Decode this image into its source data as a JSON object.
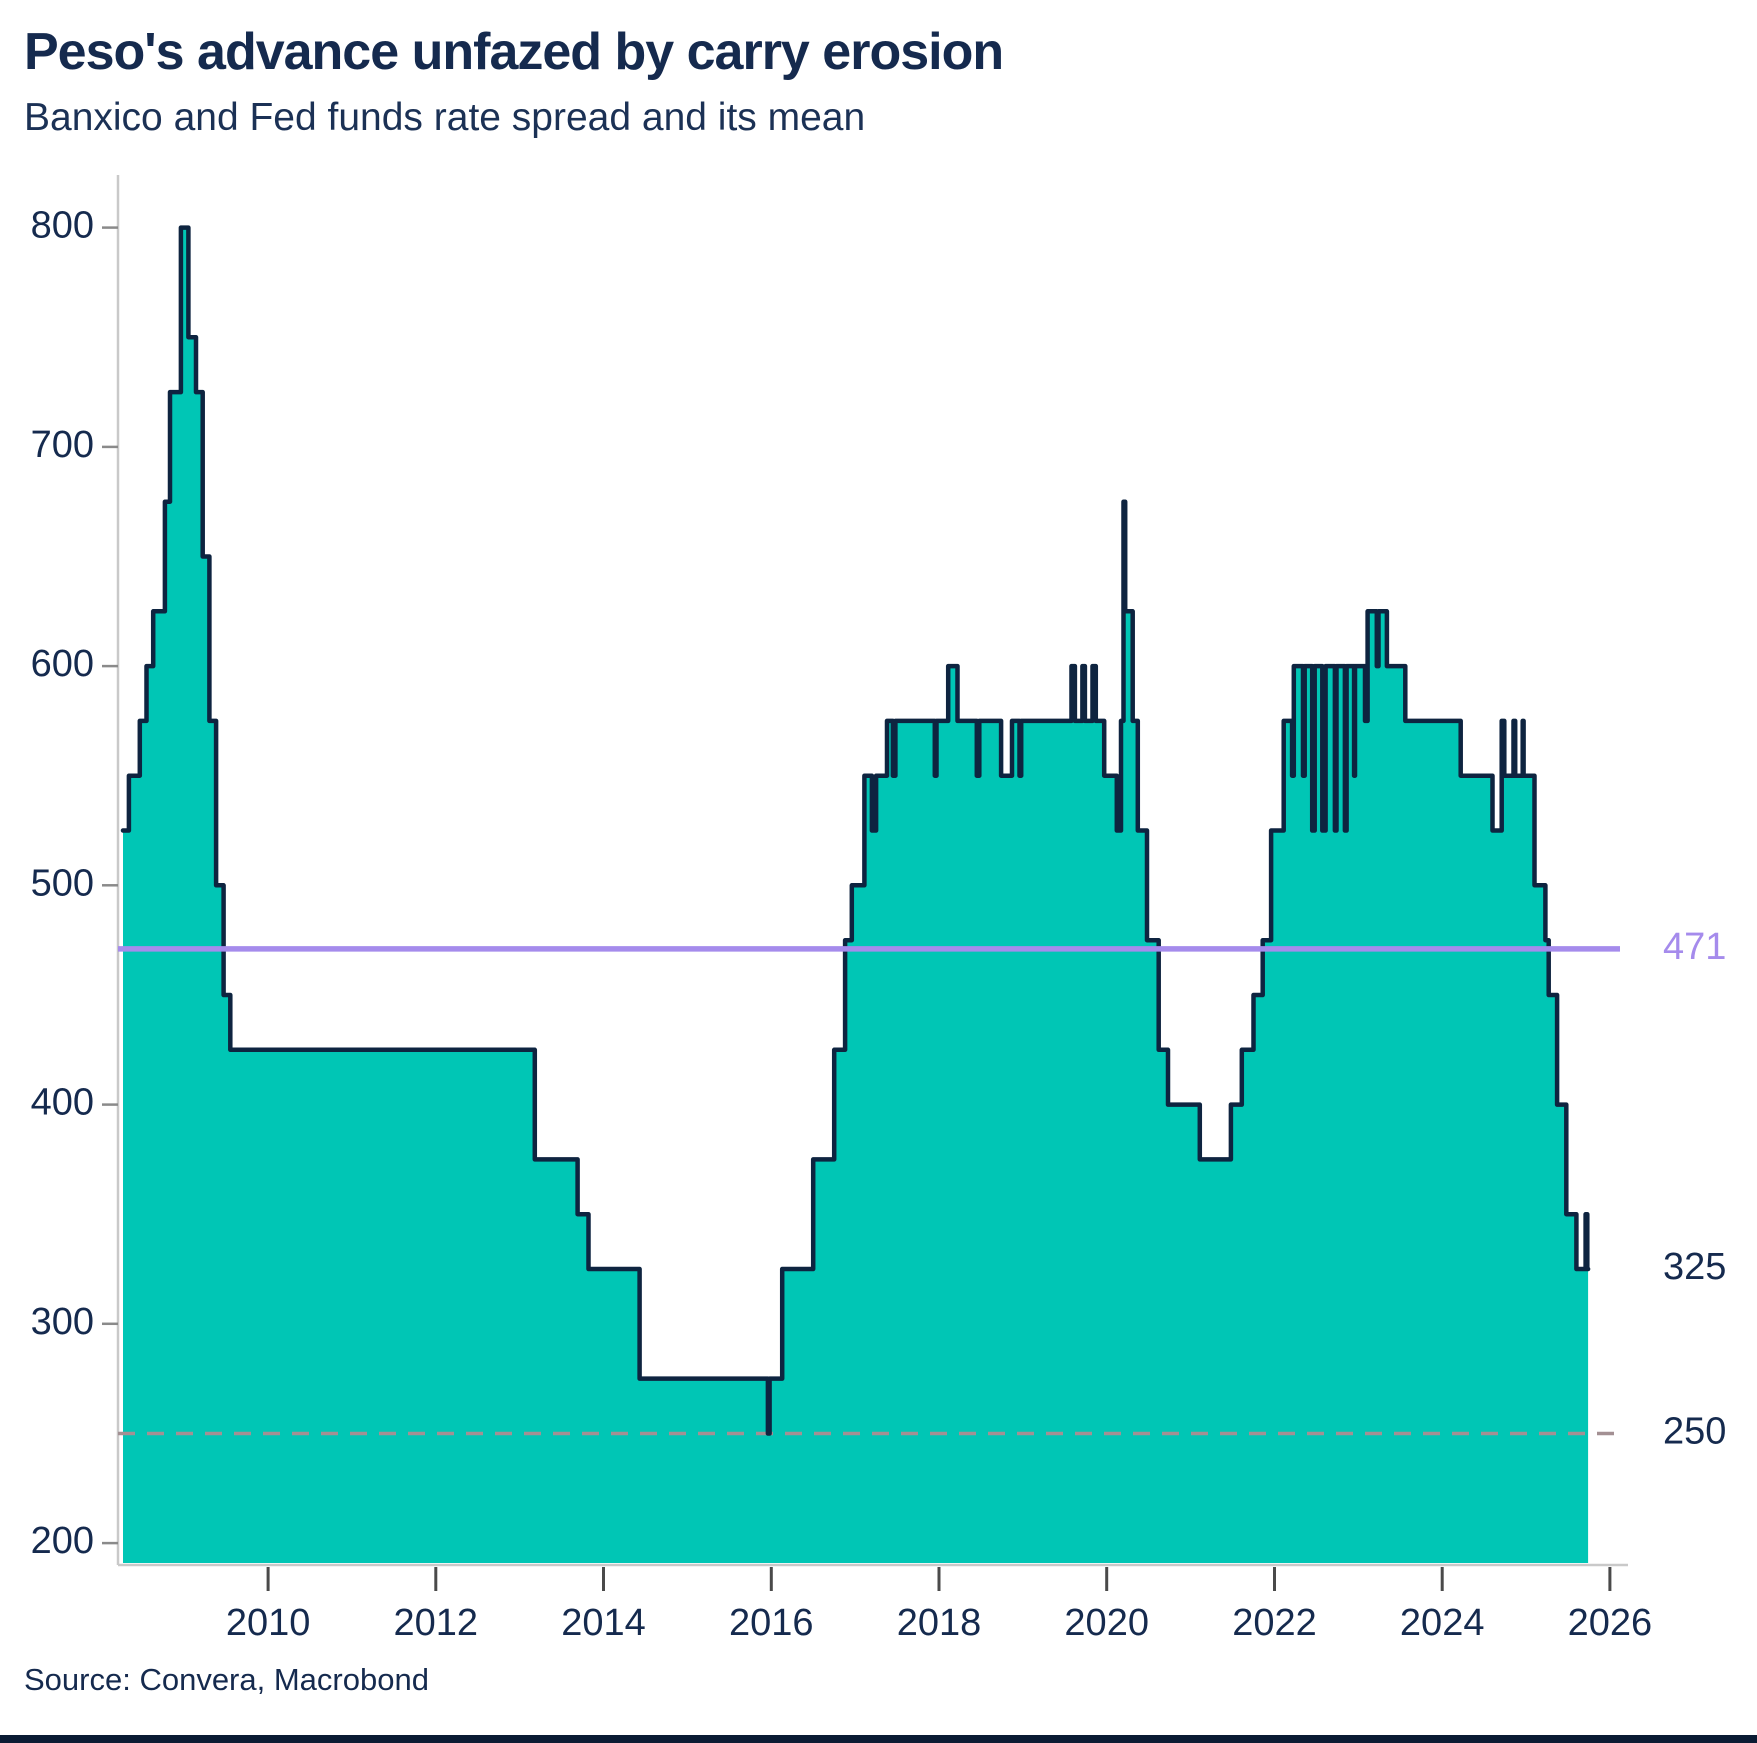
{
  "header": {
    "title": "Peso's advance unfazed by carry erosion",
    "subtitle": "Banxico and Fed funds rate spread and its mean"
  },
  "source": {
    "label": "Source: Convera, Macrobond"
  },
  "chart_data": {
    "type": "area",
    "series_name": "Banxico minus Fed funds rate spread (basis points)",
    "step_mode": "hold-until-next",
    "xlim": [
      2008.27,
      2026.12
    ],
    "ylim": [
      190,
      824
    ],
    "x_ticks": [
      2010,
      2012,
      2014,
      2016,
      2018,
      2020,
      2022,
      2024,
      2026
    ],
    "y_ticks": [
      200,
      300,
      400,
      500,
      600,
      700,
      800
    ],
    "grid": false,
    "steps": [
      [
        2008.27,
        525
      ],
      [
        2008.34,
        550
      ],
      [
        2008.47,
        575
      ],
      [
        2008.55,
        600
      ],
      [
        2008.63,
        625
      ],
      [
        2008.77,
        675
      ],
      [
        2008.83,
        725
      ],
      [
        2008.96,
        800
      ],
      [
        2009.05,
        750
      ],
      [
        2009.14,
        725
      ],
      [
        2009.22,
        650
      ],
      [
        2009.3,
        575
      ],
      [
        2009.38,
        500
      ],
      [
        2009.47,
        450
      ],
      [
        2009.55,
        425
      ],
      [
        2013.18,
        375
      ],
      [
        2013.69,
        350
      ],
      [
        2013.82,
        325
      ],
      [
        2014.43,
        275
      ],
      [
        2015.96,
        250
      ],
      [
        2015.98,
        275
      ],
      [
        2016.13,
        325
      ],
      [
        2016.5,
        375
      ],
      [
        2016.75,
        425
      ],
      [
        2016.88,
        475
      ],
      [
        2016.96,
        500
      ],
      [
        2017.11,
        550
      ],
      [
        2017.2,
        525
      ],
      [
        2017.25,
        550
      ],
      [
        2017.38,
        575
      ],
      [
        2017.45,
        550
      ],
      [
        2017.48,
        575
      ],
      [
        2017.95,
        550
      ],
      [
        2017.97,
        575
      ],
      [
        2018.11,
        600
      ],
      [
        2018.22,
        575
      ],
      [
        2018.45,
        550
      ],
      [
        2018.48,
        575
      ],
      [
        2018.74,
        550
      ],
      [
        2018.87,
        575
      ],
      [
        2018.96,
        550
      ],
      [
        2018.98,
        575
      ],
      [
        2019.58,
        600
      ],
      [
        2019.62,
        575
      ],
      [
        2019.71,
        600
      ],
      [
        2019.74,
        575
      ],
      [
        2019.83,
        600
      ],
      [
        2019.87,
        575
      ],
      [
        2019.97,
        550
      ],
      [
        2020.12,
        525
      ],
      [
        2020.17,
        575
      ],
      [
        2020.2,
        675
      ],
      [
        2020.22,
        625
      ],
      [
        2020.31,
        575
      ],
      [
        2020.37,
        525
      ],
      [
        2020.48,
        475
      ],
      [
        2020.62,
        425
      ],
      [
        2020.73,
        400
      ],
      [
        2021.11,
        375
      ],
      [
        2021.48,
        400
      ],
      [
        2021.61,
        425
      ],
      [
        2021.75,
        450
      ],
      [
        2021.86,
        475
      ],
      [
        2021.96,
        525
      ],
      [
        2022.11,
        575
      ],
      [
        2022.21,
        550
      ],
      [
        2022.23,
        600
      ],
      [
        2022.34,
        550
      ],
      [
        2022.36,
        600
      ],
      [
        2022.45,
        525
      ],
      [
        2022.48,
        600
      ],
      [
        2022.57,
        525
      ],
      [
        2022.61,
        600
      ],
      [
        2022.72,
        525
      ],
      [
        2022.74,
        600
      ],
      [
        2022.84,
        525
      ],
      [
        2022.86,
        600
      ],
      [
        2022.95,
        550
      ],
      [
        2022.96,
        600
      ],
      [
        2023.08,
        575
      ],
      [
        2023.11,
        625
      ],
      [
        2023.22,
        600
      ],
      [
        2023.24,
        625
      ],
      [
        2023.34,
        600
      ],
      [
        2023.56,
        575
      ],
      [
        2024.22,
        550
      ],
      [
        2024.6,
        525
      ],
      [
        2024.71,
        575
      ],
      [
        2024.74,
        550
      ],
      [
        2024.85,
        575
      ],
      [
        2024.87,
        550
      ],
      [
        2024.96,
        575
      ],
      [
        2024.97,
        550
      ],
      [
        2025.1,
        500
      ],
      [
        2025.23,
        475
      ],
      [
        2025.27,
        450
      ],
      [
        2025.37,
        400
      ],
      [
        2025.48,
        350
      ],
      [
        2025.6,
        325
      ],
      [
        2025.71,
        350
      ],
      [
        2025.73,
        325
      ],
      [
        2025.74,
        325
      ]
    ],
    "mean_line": {
      "value": 471,
      "label": "471",
      "color": "#A58BEC"
    },
    "reference_line": {
      "value": 250,
      "label": "250",
      "style": "dashed",
      "color": "#A39093"
    },
    "last_value_label": {
      "value": 325,
      "label": "325"
    },
    "colors": {
      "area_fill": "#00C6B5",
      "line": "#0E2440",
      "text": "#152A4E",
      "axis": "#C9C9C9",
      "y_tick": "#8A8A8A",
      "x_tick": "#4A4A4A"
    }
  }
}
